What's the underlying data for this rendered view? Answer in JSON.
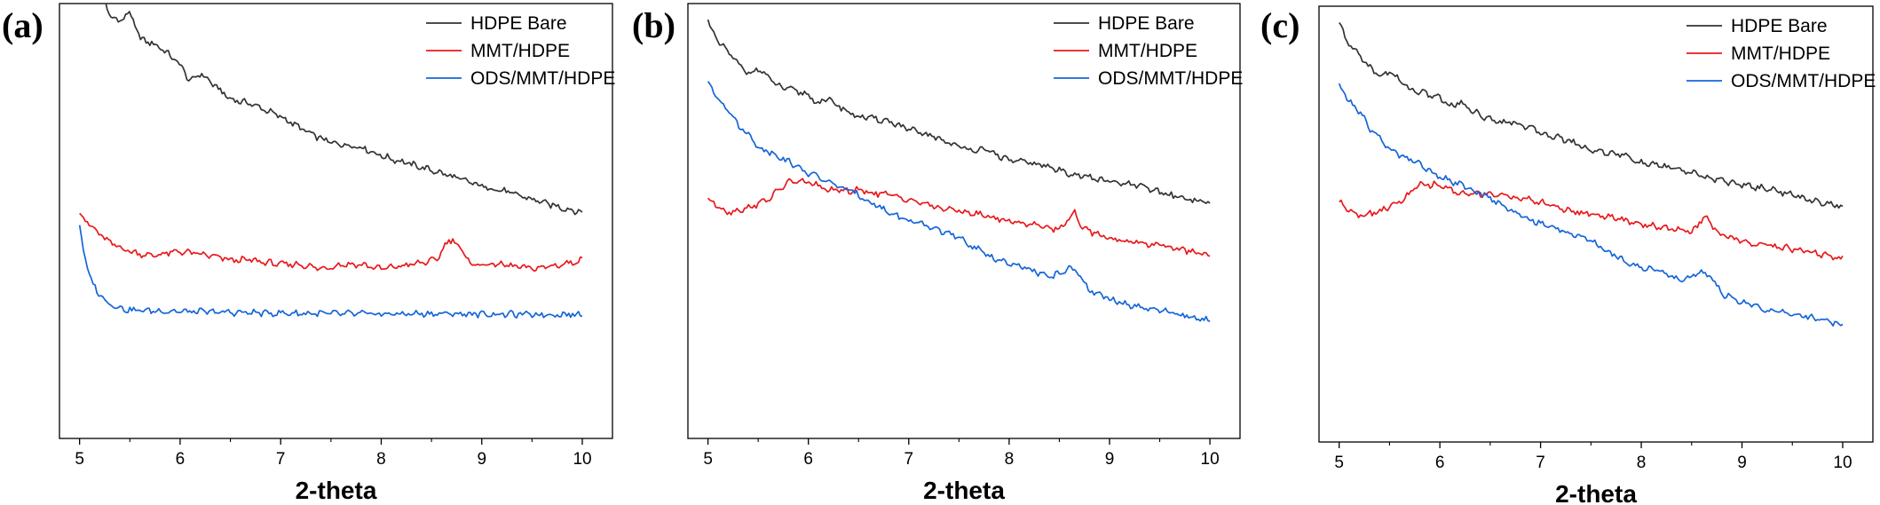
{
  "chart_data": [
    {
      "panel": "(a)",
      "type": "line",
      "xlabel": "2-theta",
      "ylabel": "",
      "xlim": [
        4.8,
        10.3
      ],
      "ylim": [
        0,
        100
      ],
      "x_ticks": [
        "5",
        "6",
        "7",
        "8",
        "9",
        "10"
      ],
      "grid": false,
      "legend_position": "top-right",
      "series": [
        {
          "name": "HDPE Bare",
          "color": "#333333",
          "x": [
            5.2,
            5.3,
            5.4,
            5.5,
            5.6,
            5.8,
            6.0,
            6.1,
            6.2,
            6.4,
            6.5,
            6.7,
            7.0,
            7.3,
            7.5,
            7.8,
            8.0,
            8.3,
            8.6,
            9.0,
            9.2,
            9.5,
            9.8,
            10.0
          ],
          "y": [
            105,
            97,
            96,
            98,
            92,
            90,
            86,
            82,
            84,
            80,
            78,
            77,
            74,
            70,
            68,
            67,
            65,
            63,
            61,
            58,
            57,
            55,
            53,
            52
          ]
        },
        {
          "name": "MMT/HDPE",
          "color": "#e8191c",
          "x": [
            5.0,
            5.1,
            5.2,
            5.3,
            5.5,
            5.7,
            6.0,
            6.3,
            6.5,
            6.7,
            7.0,
            7.2,
            7.4,
            7.6,
            7.8,
            8.0,
            8.3,
            8.55,
            8.65,
            8.72,
            8.8,
            8.9,
            9.2,
            9.5,
            9.8,
            10.0
          ],
          "y": [
            52,
            49,
            47,
            45,
            43,
            42,
            43,
            42,
            41,
            41,
            40,
            40,
            39,
            40,
            40,
            39,
            40,
            41,
            45,
            46,
            43,
            40,
            40,
            39,
            40,
            41
          ]
        },
        {
          "name": "ODS/MMT/HDPE",
          "color": "#1565d8",
          "x": [
            5.0,
            5.05,
            5.1,
            5.2,
            5.3,
            5.4,
            5.5,
            6.0,
            6.5,
            7.0,
            7.5,
            8.0,
            8.5,
            9.0,
            9.5,
            10.0
          ],
          "y": [
            49,
            42,
            37,
            33,
            31,
            30,
            29.5,
            29.2,
            29,
            28.8,
            28.7,
            28.6,
            28.7,
            28.6,
            28.5,
            28.5
          ]
        }
      ]
    },
    {
      "panel": "(b)",
      "type": "line",
      "xlabel": "2-theta",
      "ylabel": "",
      "xlim": [
        4.8,
        10.3
      ],
      "ylim": [
        0,
        100
      ],
      "x_ticks": [
        "5",
        "6",
        "7",
        "8",
        "9",
        "10"
      ],
      "grid": false,
      "legend_position": "top-right",
      "series": [
        {
          "name": "HDPE Bare",
          "color": "#333333",
          "x": [
            5.0,
            5.1,
            5.2,
            5.3,
            5.4,
            5.5,
            5.7,
            6.0,
            6.1,
            6.2,
            6.4,
            6.5,
            6.8,
            7.0,
            7.3,
            7.5,
            7.8,
            8.0,
            8.3,
            8.6,
            9.0,
            9.3,
            9.6,
            9.8,
            10.0
          ],
          "y": [
            96,
            91,
            89,
            86,
            84,
            85,
            81,
            79,
            77,
            78,
            75,
            74,
            73,
            71,
            69,
            67,
            66,
            64,
            63,
            61,
            59,
            58,
            56,
            55,
            54
          ]
        },
        {
          "name": "MMT/HDPE",
          "color": "#e8191c",
          "x": [
            5.0,
            5.2,
            5.4,
            5.6,
            5.8,
            6.0,
            6.2,
            6.5,
            6.8,
            7.0,
            7.3,
            7.6,
            7.8,
            8.0,
            8.3,
            8.5,
            8.6,
            8.65,
            8.75,
            9.0,
            9.3,
            9.6,
            9.8,
            10.0
          ],
          "y": [
            55,
            52,
            53,
            55,
            59,
            59,
            57,
            57,
            56,
            55,
            53,
            52,
            51,
            50,
            49,
            48,
            51,
            52,
            48,
            46,
            45,
            44,
            43,
            42
          ]
        },
        {
          "name": "ODS/MMT/HDPE",
          "color": "#1565d8",
          "x": [
            5.0,
            5.1,
            5.2,
            5.3,
            5.4,
            5.5,
            5.7,
            6.0,
            6.3,
            6.5,
            6.8,
            7.0,
            7.3,
            7.5,
            7.8,
            8.0,
            8.2,
            8.4,
            8.6,
            8.7,
            8.8,
            9.0,
            9.3,
            9.6,
            9.8,
            10.0
          ],
          "y": [
            82,
            78,
            76,
            72,
            70,
            67,
            65,
            61,
            58,
            56,
            52,
            50,
            48,
            46,
            42,
            40,
            39,
            37,
            39,
            38,
            34,
            32,
            30,
            29,
            28,
            27
          ]
        }
      ]
    },
    {
      "panel": "(c)",
      "type": "line",
      "xlabel": "2-theta",
      "ylabel": "",
      "xlim": [
        4.8,
        10.3
      ],
      "ylim": [
        0,
        100
      ],
      "x_ticks": [
        "5",
        "6",
        "7",
        "8",
        "9",
        "10"
      ],
      "grid": false,
      "legend_position": "top-right",
      "series": [
        {
          "name": "HDPE Bare",
          "color": "#333333",
          "x": [
            5.0,
            5.1,
            5.2,
            5.3,
            5.4,
            5.5,
            5.7,
            6.0,
            6.1,
            6.2,
            6.4,
            6.5,
            6.8,
            7.0,
            7.3,
            7.5,
            7.8,
            8.0,
            8.3,
            8.6,
            9.0,
            9.3,
            9.6,
            9.8,
            10.0
          ],
          "y": [
            96,
            91,
            89,
            86,
            84,
            85,
            81,
            79,
            77,
            78,
            75,
            74,
            73,
            71,
            69,
            67,
            66,
            64,
            63,
            61,
            59,
            58,
            56,
            55,
            54
          ]
        },
        {
          "name": "MMT/HDPE",
          "color": "#e8191c",
          "x": [
            5.0,
            5.2,
            5.4,
            5.6,
            5.8,
            6.0,
            6.2,
            6.5,
            6.8,
            7.0,
            7.3,
            7.6,
            7.8,
            8.0,
            8.3,
            8.5,
            8.6,
            8.65,
            8.75,
            9.0,
            9.3,
            9.6,
            9.8,
            10.0
          ],
          "y": [
            55,
            52,
            53,
            55,
            59,
            59,
            57,
            57,
            56,
            55,
            53,
            52,
            51,
            50,
            49,
            48,
            51,
            52,
            48,
            46,
            45,
            44,
            43,
            42
          ]
        },
        {
          "name": "ODS/MMT/HDPE",
          "color": "#1565d8",
          "x": [
            5.0,
            5.1,
            5.2,
            5.3,
            5.4,
            5.5,
            5.7,
            6.0,
            6.3,
            6.5,
            6.8,
            7.0,
            7.3,
            7.5,
            7.8,
            8.0,
            8.2,
            8.4,
            8.6,
            8.7,
            8.8,
            9.0,
            9.3,
            9.6,
            9.8,
            10.0
          ],
          "y": [
            82,
            78,
            76,
            72,
            70,
            67,
            65,
            61,
            58,
            56,
            52,
            50,
            48,
            46,
            42,
            40,
            39,
            37,
            39,
            38,
            34,
            32,
            30,
            29,
            28,
            27
          ]
        }
      ]
    }
  ]
}
